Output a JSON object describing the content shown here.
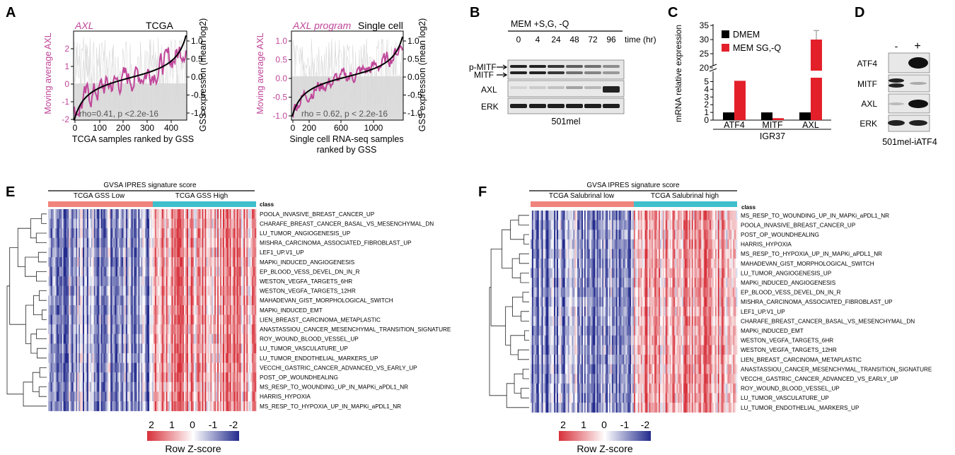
{
  "panels": {
    "A": "A",
    "B": "B",
    "C": "C",
    "D": "D",
    "E": "E",
    "F": "F"
  },
  "colors": {
    "magenta": "#c0479a",
    "black": "#000000",
    "red": "#e3202a",
    "salmon": "#f0847c",
    "teal": "#3fbfcc",
    "heat_red": "#d7303a",
    "heat_white": "#ffffff",
    "heat_blue": "#222a8c"
  },
  "panelA": {
    "tcga": {
      "left_tag": "AXL",
      "right_tag": "TCGA",
      "ylabel_left": "Moving average AXL",
      "ylabel_right": "GSS expression (mean log2)",
      "xlabel": "TCGA samples ranked by GSS",
      "stat": "rho=0.41, p <2.2e-16",
      "xticks": [
        "0",
        "100",
        "200",
        "300",
        "400"
      ],
      "yticks_left": [
        "2",
        "1",
        "0",
        "-1",
        "-2"
      ],
      "yticks_right": [
        "1.0",
        "0.5",
        "0.0",
        "-0.5",
        "-1.0"
      ]
    },
    "sc": {
      "left_tag": "AXL program",
      "right_tag": "Single cell",
      "ylabel_left": "Moving average AXL",
      "ylabel_right": "GSS expression (mean log2)",
      "xlabel_line1": "Single cell RNA-seq samples",
      "xlabel_line2": "ranked by GSS",
      "stat": "rho = 0.62, p < 2.2e-16",
      "xticks": [
        "0",
        "200",
        "600",
        "1000"
      ],
      "yticks_left": [
        "1.0",
        "0.5",
        "0.0",
        "-0.5",
        "-1.0"
      ],
      "yticks_right": [
        "1.0",
        "0.5",
        "0.0",
        "-0.5",
        "-1.0"
      ]
    }
  },
  "panelB": {
    "condition": "MEM +S,G, -Q",
    "timepoints": [
      "0",
      "4",
      "24",
      "48",
      "72",
      "96"
    ],
    "time_unit": "time (hr)",
    "rows": [
      "p-MITF",
      "MITF",
      "AXL",
      "ERK"
    ],
    "cell_line": "501mel"
  },
  "panelC": {
    "ylabel": "mRNA relative expression",
    "legend": [
      "DMEM",
      "MEM SG,-Q"
    ],
    "cell_line": "IGR37",
    "yticks_low": [
      "0",
      "1",
      "2",
      "3",
      "4",
      "5"
    ],
    "yticks_high": [
      "20",
      "25",
      "30",
      "35"
    ],
    "chart_data": {
      "type": "bar",
      "categories": [
        "ATF4",
        "MITF",
        "AXL"
      ],
      "series": [
        {
          "name": "DMEM",
          "values": [
            1.0,
            1.0,
            1.0
          ]
        },
        {
          "name": "MEM SG,-Q",
          "values": [
            5.1,
            0.25,
            30.0
          ]
        }
      ],
      "error": [
        null,
        null,
        3.2
      ],
      "ylim": [
        0,
        35
      ],
      "axis_break": [
        5.5,
        19
      ]
    }
  },
  "panelD": {
    "columns": [
      "-",
      "+"
    ],
    "rows": [
      "ATF4",
      "MITF",
      "AXL",
      "ERK"
    ],
    "cell_line": "501mel-iATF4"
  },
  "panelE": {
    "title": "GVSA IPRES signature score",
    "groups": [
      "TCGA GSS Low",
      "TCGA GSS High"
    ],
    "class_label": "class",
    "genesets": [
      "POOLA_INVASIVE_BREAST_CANCER_UP",
      "CHARAFE_BREAST_CANCER_BASAL_VS_MESENCHYMAL_DN",
      "LU_TUMOR_ANGIOGENESIS_UP",
      "MISHRA_CARCINOMA_ASSOCIATED_FIBROBLAST_UP",
      "LEF1_UP.V1_UP",
      "MAPKi_INDUCED_ANGIOGENESIS",
      "EP_BLOOD_VESS_DEVEL_DN_IN_R",
      "WESTON_VEGFA_TARGETS_6HR",
      "WESTON_VEGFA_TARGETS_12HR",
      "MAHADEVAN_GIST_MORPHOLOGICAL_SWITCH",
      "MAPKi_INDUCED_EMT",
      "LIEN_BREAST_CARCINOMA_METAPLASTIC",
      "ANASTASSIOU_CANCER_MESENCHYMAL_TRANSITION_SIGNATURE",
      "ROY_WOUND_BLOOD_VESSEL_UP",
      "LU_TUMOR_VASCULATURE_UP",
      "LU_TUMOR_ENDOTHELIAL_MARKERS_UP",
      "VECCHI_GASTRIC_CANCER_ADVANCED_VS_EARLY_UP",
      "POST_OP_WOUNDHEALING",
      "MS_RESP_TO_WOUNDING_UP_IN_MAPKi_aPDL1_NR",
      "HARRIS_HYPOXIA",
      "MS_RESP_TO_HYPOXIA_UP_IN_MAPKi_aPDL1_NR"
    ],
    "scale": [
      "2",
      "1",
      "0",
      "-1",
      "-2"
    ],
    "scale_label": "Row Z-score"
  },
  "panelF": {
    "title": "GVSA IPRES signature score",
    "groups": [
      "TCGA Salubrinal low",
      "TCGA Salubrinal high"
    ],
    "class_label": "class",
    "genesets": [
      "MS_RESP_TO_WOUNDING_UP_IN_MAPKi_aPDL1_NR",
      "POOLA_INVASIVE_BREAST_CANCER_UP",
      "POST_OP_WOUNDHEALING",
      "HARRIS_HYPOXIA",
      "MS_RESP_TO_HYPOXIA_UP_IN_MAPKi_aPDL1_NR",
      "MAHADEVAN_GIST_MORPHOLOGICAL_SWITCH",
      "LU_TUMOR_ANGIOGENESIS_UP",
      "MAPKi_INDUCED_ANGIOGENESIS",
      "EP_BLOOD_VESS_DEVEL_DN_IN_R",
      "MISHRA_CARCINOMA_ASSOCIATED_FIBROBLAST_UP",
      "LEF1_UP.V1_UP",
      "CHARAFE_BREAST_CANCER_BASAL_VS_MESENCHYMAL_DN",
      "MAPKi_INDUCED_EMT",
      "WESTON_VEGFA_TARGETS_6HR",
      "WESTON_VEGFA_TARGETS_12HR",
      "LIEN_BREAST_CARCINOMA_METAPLASTIC",
      "ANASTASSIOU_CANCER_MESENCHYMAL_TRANSITION_SIGNATURE",
      "VECCHI_GASTRIC_CANCER_ADVANCED_VS_EARLY_UP",
      "ROY_WOUND_BLOOD_VESSEL_UP",
      "LU_TUMOR_VASCULATURE_UP",
      "LU_TUMOR_ENDOTHELIAL_MARKERS_UP"
    ],
    "scale": [
      "2",
      "1",
      "0",
      "-1",
      "-2"
    ],
    "scale_label": "Row Z-score"
  }
}
